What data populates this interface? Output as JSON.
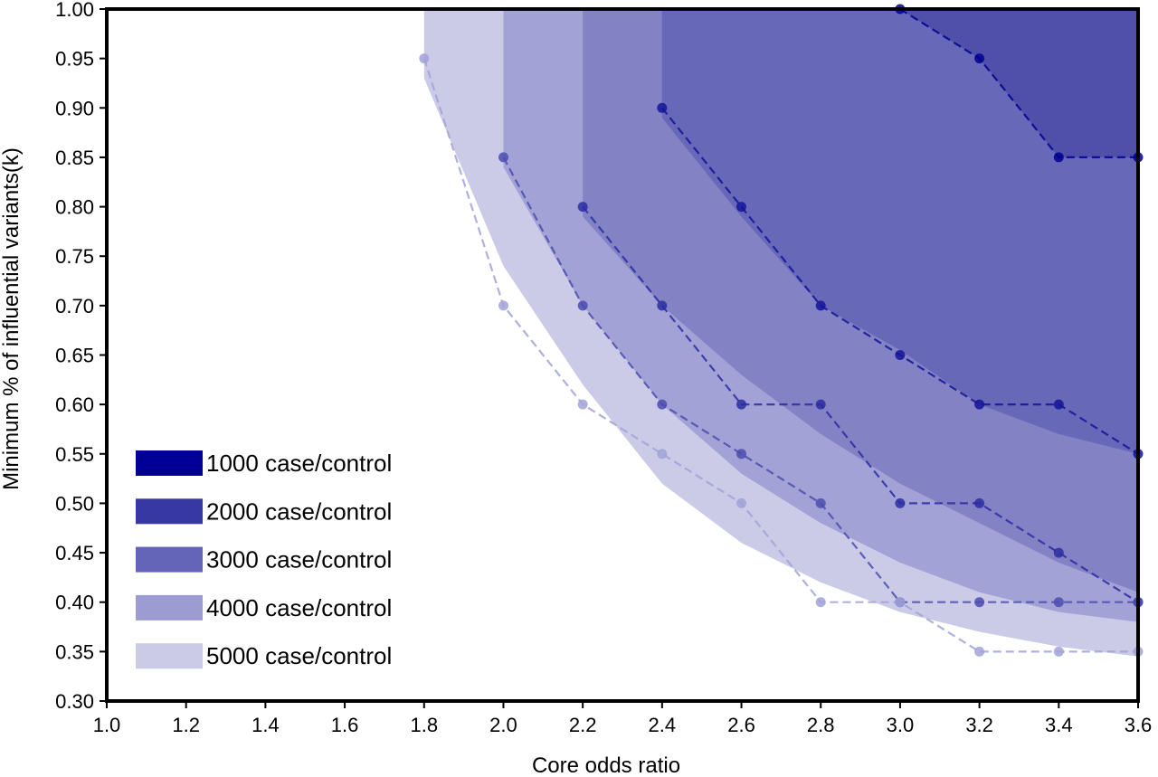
{
  "chart_data": {
    "type": "area",
    "title": "",
    "xlabel": "Core odds ratio",
    "ylabel": "Minimum % of influential variants(k)",
    "xlim": [
      1.0,
      3.6
    ],
    "ylim": [
      0.3,
      1.0
    ],
    "grid": false,
    "legend_placement": "bottom-left",
    "x_tick_labels": [
      "1.0",
      "1.2",
      "1.4",
      "1.6",
      "1.8",
      "2.0",
      "2.2",
      "2.4",
      "2.6",
      "2.8",
      "3.0",
      "3.2",
      "3.4",
      "3.6"
    ],
    "y_tick_labels": [
      "0.30",
      "0.35",
      "0.40",
      "0.45",
      "0.50",
      "0.55",
      "0.60",
      "0.65",
      "0.70",
      "0.75",
      "0.80",
      "0.85",
      "0.90",
      "0.95",
      "1.00"
    ],
    "series": [
      {
        "name": "1000 case/control",
        "legend_color": "#000096",
        "line_color": "#000090",
        "band_color": "#5050aa",
        "x": [
          3.0,
          3.2,
          3.4,
          3.6
        ],
        "y": [
          1.0,
          0.95,
          0.85,
          0.85
        ],
        "band_lower": [
          [
            3.0,
            1.0
          ],
          [
            3.2,
            0.95
          ],
          [
            3.4,
            0.85
          ],
          [
            3.6,
            0.85
          ]
        ]
      },
      {
        "name": "2000 case/control",
        "legend_color": "#3838a4",
        "line_color": "#14149a",
        "band_color": "#6868b8",
        "x": [
          2.4,
          2.6,
          2.8,
          3.0,
          3.2,
          3.4,
          3.6
        ],
        "y": [
          0.9,
          0.8,
          0.7,
          0.65,
          0.6,
          0.6,
          0.55
        ],
        "band_lower": [
          [
            2.4,
            1.0
          ],
          [
            2.4,
            0.89
          ],
          [
            2.6,
            0.79
          ],
          [
            2.8,
            0.7
          ],
          [
            3.0,
            0.655
          ],
          [
            3.2,
            0.6
          ],
          [
            3.4,
            0.57
          ],
          [
            3.6,
            0.55
          ]
        ]
      },
      {
        "name": "3000 case/control",
        "legend_color": "#6464b8",
        "line_color": "#2c2ca4",
        "band_color": "#8282c4",
        "x": [
          2.2,
          2.4,
          2.6,
          2.8,
          3.0,
          3.2,
          3.4,
          3.6
        ],
        "y": [
          0.8,
          0.7,
          0.6,
          0.6,
          0.5,
          0.5,
          0.45,
          0.4
        ],
        "band_lower": [
          [
            2.2,
            1.0
          ],
          [
            2.2,
            0.79
          ],
          [
            2.4,
            0.7
          ],
          [
            2.6,
            0.63
          ],
          [
            2.8,
            0.57
          ],
          [
            3.0,
            0.52
          ],
          [
            3.2,
            0.48
          ],
          [
            3.4,
            0.44
          ],
          [
            3.6,
            0.41
          ]
        ]
      },
      {
        "name": "4000 case/control",
        "legend_color": "#9c9cd2",
        "line_color": "#4c4cb0",
        "band_color": "#a2a2d6",
        "x": [
          2.0,
          2.2,
          2.4,
          2.6,
          2.8,
          3.0,
          3.2,
          3.4,
          3.6
        ],
        "y": [
          0.85,
          0.7,
          0.6,
          0.55,
          0.5,
          0.4,
          0.4,
          0.4,
          0.4
        ],
        "band_lower": [
          [
            2.0,
            1.0
          ],
          [
            2.0,
            0.84
          ],
          [
            2.2,
            0.7
          ],
          [
            2.4,
            0.6
          ],
          [
            2.6,
            0.53
          ],
          [
            2.8,
            0.48
          ],
          [
            3.0,
            0.44
          ],
          [
            3.2,
            0.41
          ],
          [
            3.4,
            0.39
          ],
          [
            3.6,
            0.38
          ]
        ]
      },
      {
        "name": "5000 case/control",
        "legend_color": "#cbcbe8",
        "line_color": "#a2a2d8",
        "band_color": "#cbcbe8",
        "x": [
          1.8,
          2.0,
          2.2,
          2.4,
          2.6,
          2.8,
          3.0,
          3.2,
          3.4,
          3.6
        ],
        "y": [
          0.95,
          0.7,
          0.6,
          0.55,
          0.5,
          0.4,
          0.4,
          0.35,
          0.35,
          0.35
        ],
        "band_lower": [
          [
            1.8,
            1.0
          ],
          [
            1.8,
            0.93
          ],
          [
            2.0,
            0.74
          ],
          [
            2.2,
            0.62
          ],
          [
            2.4,
            0.52
          ],
          [
            2.6,
            0.46
          ],
          [
            2.8,
            0.42
          ],
          [
            3.0,
            0.39
          ],
          [
            3.2,
            0.37
          ],
          [
            3.4,
            0.355
          ],
          [
            3.6,
            0.345
          ]
        ]
      }
    ]
  }
}
